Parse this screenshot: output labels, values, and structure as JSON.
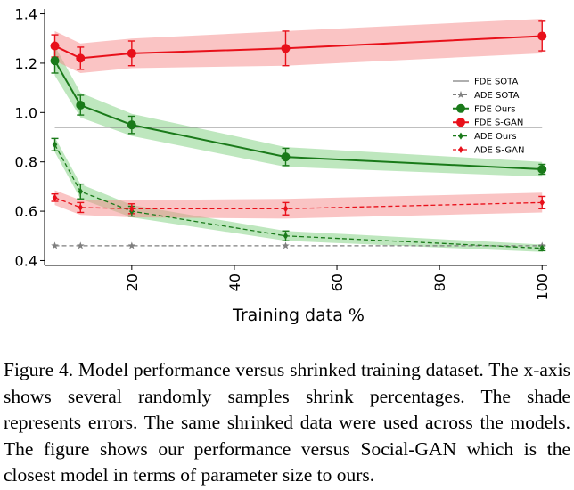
{
  "chart_data": {
    "type": "line",
    "xlabel": "Training data %",
    "ylabel": "",
    "xlim": [
      3,
      101
    ],
    "ylim": [
      0.38,
      1.42
    ],
    "xticks": [
      20,
      40,
      60,
      80,
      100
    ],
    "xtick_labels": [
      "20",
      "40",
      "60",
      "80",
      "100"
    ],
    "yticks": [
      0.4,
      0.6,
      0.8,
      1.0,
      1.2,
      1.4
    ],
    "ytick_labels": [
      "0.4",
      "0.6",
      "0.8",
      "1.0",
      "1.2",
      "1.4"
    ],
    "legend_position": "center-right",
    "series": [
      {
        "id": "fde-sota",
        "name": "FDE SOTA",
        "color": "#7f7f7f",
        "dash": "solid",
        "marker": "none",
        "x": [
          5,
          100
        ],
        "y": [
          0.94,
          0.94
        ],
        "err": null,
        "band": null
      },
      {
        "id": "ade-sota",
        "name": "ADE SOTA",
        "color": "#7f7f7f",
        "dash": "dashed",
        "marker": "star",
        "x": [
          5,
          10,
          20,
          50,
          100
        ],
        "y": [
          0.46,
          0.46,
          0.46,
          0.46,
          0.46
        ],
        "err": null,
        "band": null
      },
      {
        "id": "fde-ours",
        "name": "FDE Ours",
        "color": "#1a7a1a",
        "dash": "solid",
        "marker": "circle",
        "x": [
          5,
          10,
          20,
          50,
          100
        ],
        "y": [
          1.21,
          1.03,
          0.95,
          0.82,
          0.77
        ],
        "err": [
          0.05,
          0.04,
          0.035,
          0.035,
          0.02
        ],
        "band": [
          0.06,
          0.05,
          0.045,
          0.04,
          0.03
        ],
        "band_color": "#7ecf7e"
      },
      {
        "id": "fde-sgan",
        "name": "FDE S-GAN",
        "color": "#e8101a",
        "dash": "solid",
        "marker": "circle",
        "x": [
          5,
          10,
          20,
          50,
          100
        ],
        "y": [
          1.27,
          1.22,
          1.24,
          1.26,
          1.31
        ],
        "err": [
          0.045,
          0.045,
          0.05,
          0.07,
          0.06
        ],
        "band": [
          0.06,
          0.06,
          0.06,
          0.07,
          0.07
        ],
        "band_color": "#f58a8a"
      },
      {
        "id": "ade-ours",
        "name": "ADE Ours",
        "color": "#1a7a1a",
        "dash": "dashed",
        "marker": "diamond",
        "x": [
          5,
          10,
          20,
          50,
          100
        ],
        "y": [
          0.87,
          0.68,
          0.6,
          0.5,
          0.45
        ],
        "err": [
          0.025,
          0.03,
          0.02,
          0.02,
          0.01
        ],
        "band": [
          0.03,
          0.03,
          0.025,
          0.02,
          0.015
        ],
        "band_color": "#7ecf7e"
      },
      {
        "id": "ade-sgan",
        "name": "ADE S-GAN",
        "color": "#e8101a",
        "dash": "dashed",
        "marker": "diamond",
        "x": [
          5,
          10,
          20,
          50,
          100
        ],
        "y": [
          0.655,
          0.615,
          0.61,
          0.61,
          0.635
        ],
        "err": [
          0.015,
          0.02,
          0.02,
          0.025,
          0.025
        ],
        "band": [
          0.03,
          0.03,
          0.035,
          0.04,
          0.04
        ],
        "band_color": "#f58a8a"
      }
    ]
  },
  "caption": "Figure 4. Model performance versus shrinked training dataset. The x-axis shows several randomly samples shrink percentages. The shade represents errors. The same shrinked data were used across the models. The figure shows our performance versus Social-GAN which is the closest model in terms of parameter size to ours."
}
